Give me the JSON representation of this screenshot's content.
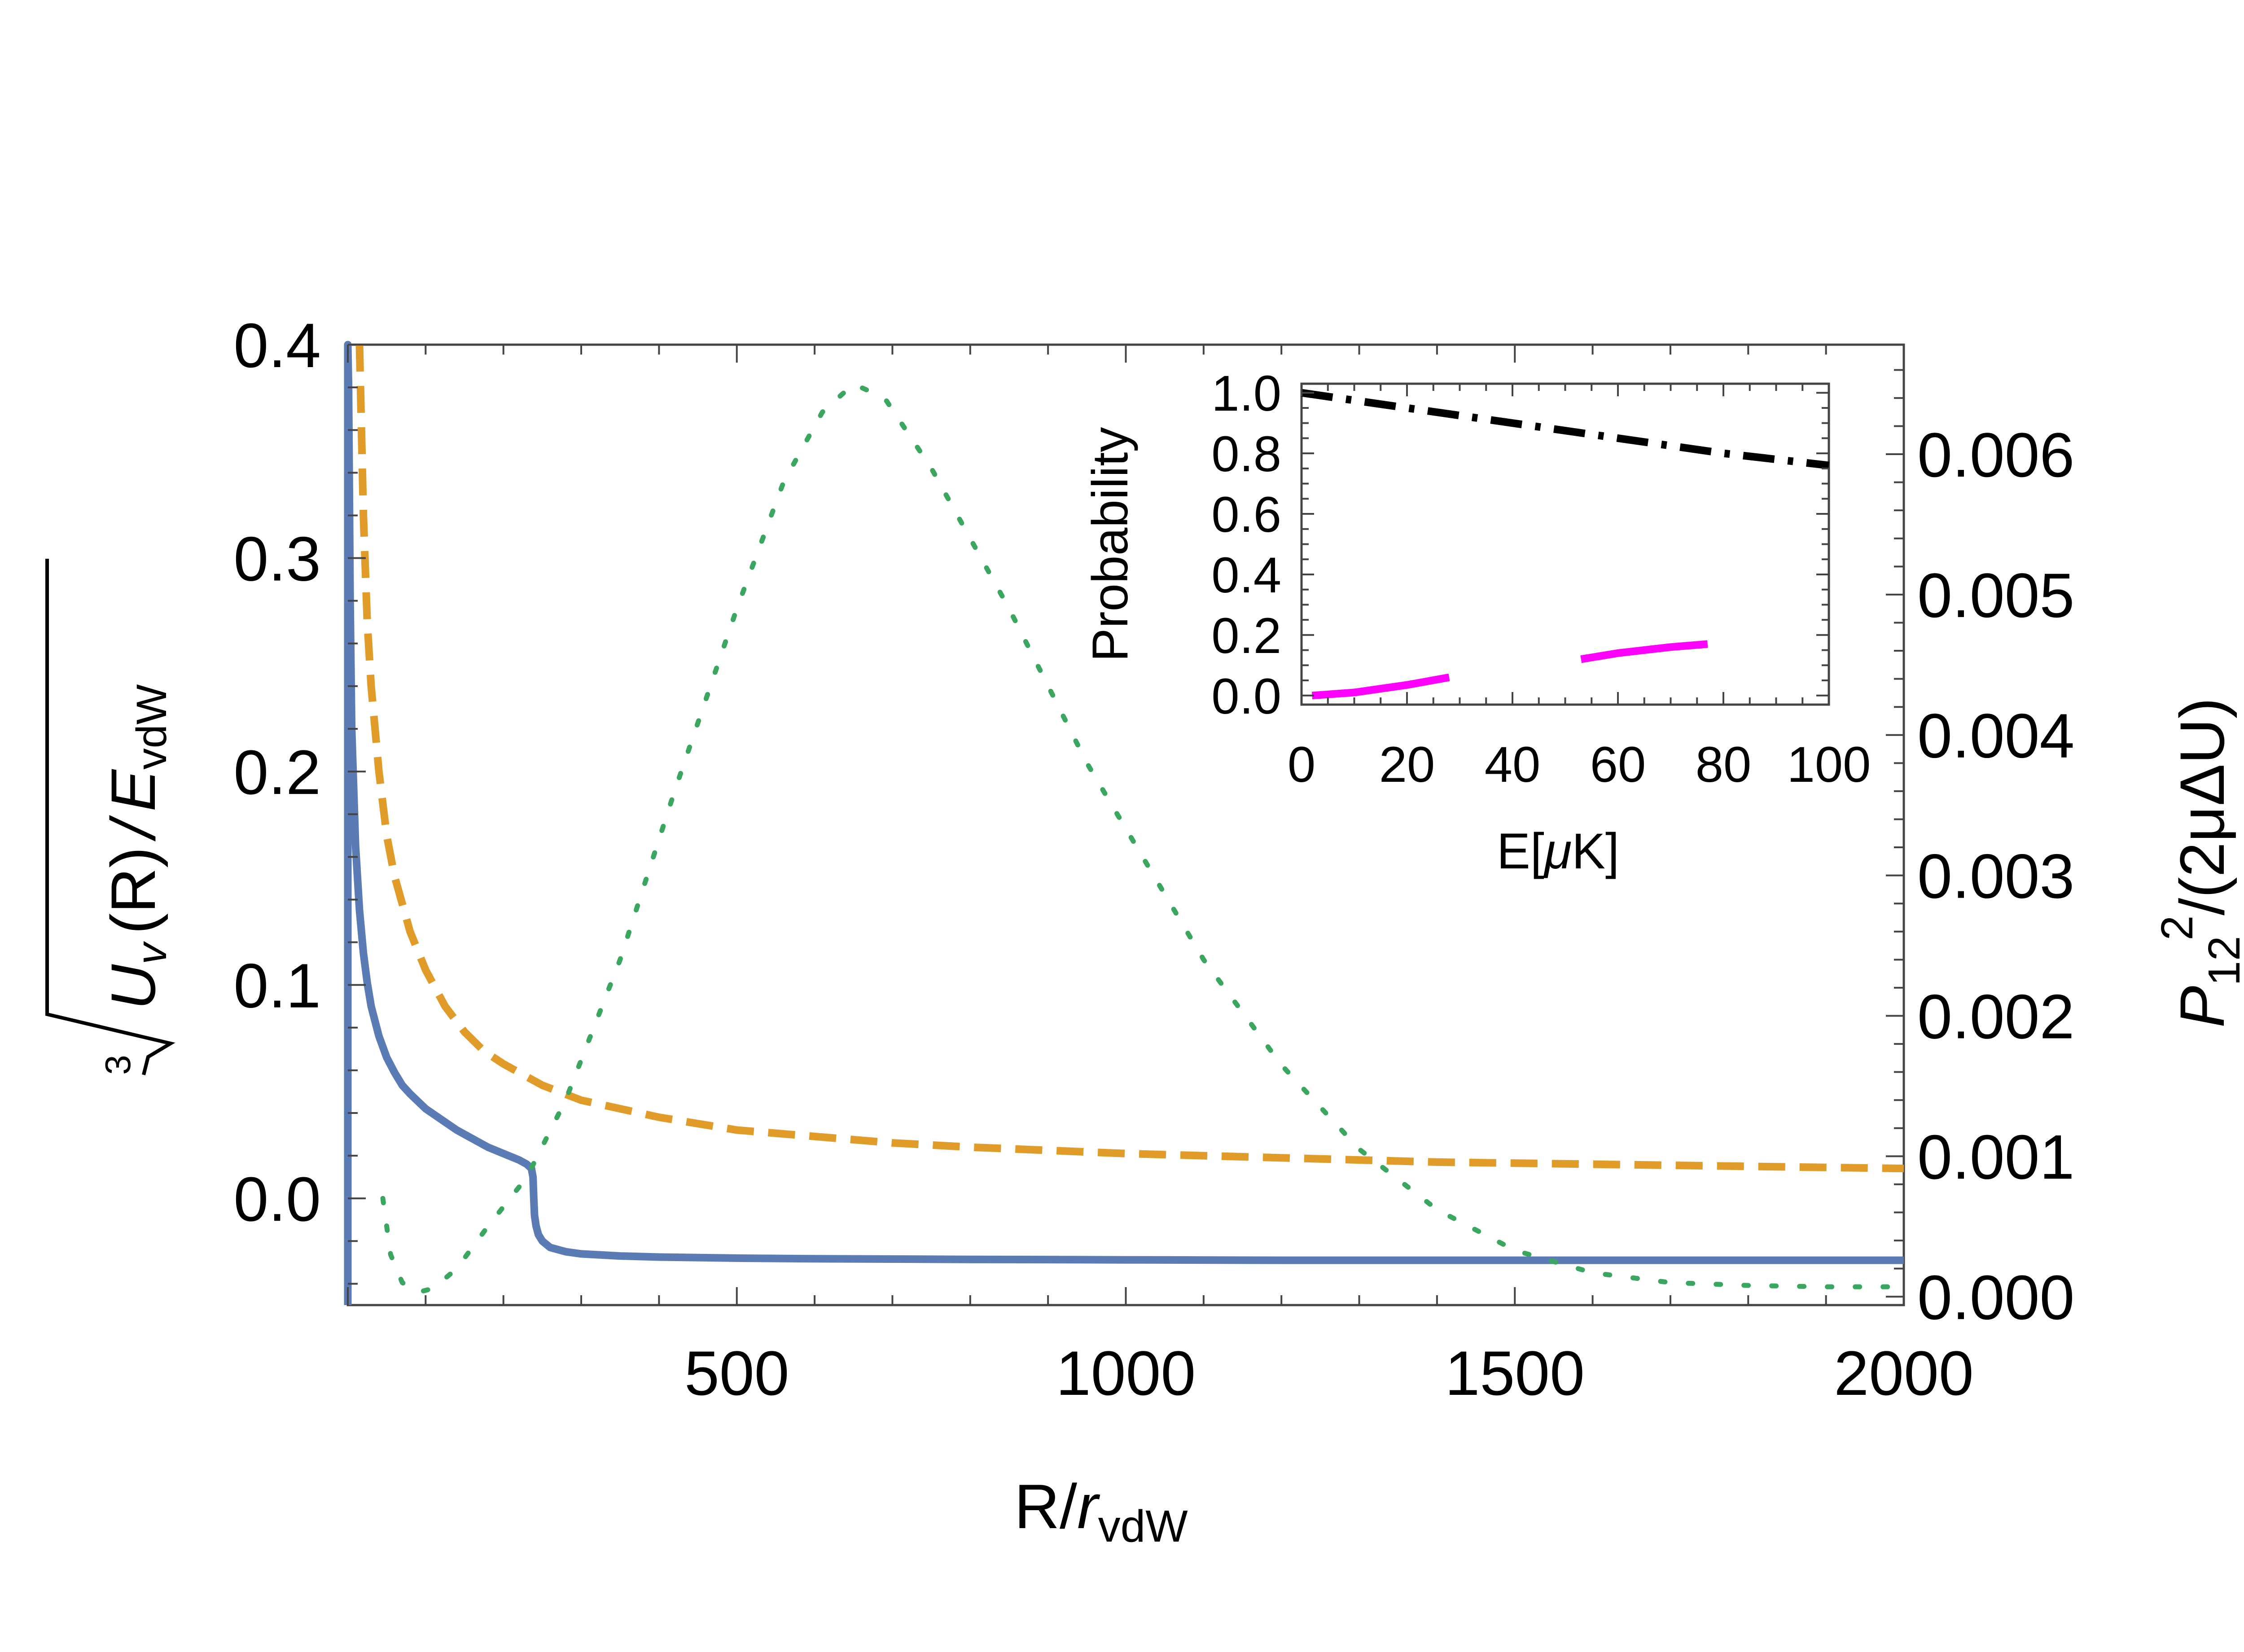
{
  "chart_data": {
    "main": {
      "type": "line",
      "title": "",
      "xlabel": {
        "base": "R/",
        "italic": "r",
        "sub": "vdW"
      },
      "ylabel_left": {
        "root_index": "3",
        "expr": "U",
        "expr_sub": "v",
        "expr_mid": "(R)",
        "slash": "/",
        "denom": "E",
        "denom_sub": "vdW"
      },
      "ylabel_right": {
        "base": "P",
        "sub": "12",
        "sup": "2",
        "rest": "/(2μΔU)"
      },
      "xlim": [
        0,
        2000
      ],
      "ylim_left": [
        -0.05,
        0.4
      ],
      "ylim_right": [
        -6e-05,
        0.00678
      ],
      "x_tick_labels": [
        "500",
        "1000",
        "1500",
        "2000"
      ],
      "y_left_tick_labels": [
        "0.0",
        "0.1",
        "0.2",
        "0.3",
        "0.4"
      ],
      "y_right_tick_labels": [
        "0.000",
        "0.001",
        "0.002",
        "0.003",
        "0.004",
        "0.005",
        "0.006"
      ],
      "series": [
        {
          "name": "cbrt U_v(R)/E_vdW (solid)",
          "axis": "left",
          "color": "#5b7bb4",
          "style": "solid",
          "x": [
            0,
            0,
            1,
            2,
            3,
            5,
            10,
            15,
            20,
            25,
            30,
            40,
            50,
            60,
            70,
            80,
            100,
            120,
            140,
            160,
            180,
            200,
            220,
            230,
            236,
            238,
            239,
            240,
            242,
            245,
            250,
            260,
            280,
            300,
            350,
            400,
            500,
            600,
            800,
            1000,
            1200,
            1500,
            2000
          ],
          "y": [
            -0.05,
            0.4,
            0.38,
            0.33,
            0.28,
            0.22,
            0.165,
            0.135,
            0.115,
            0.101,
            0.09,
            0.076,
            0.066,
            0.059,
            0.053,
            0.049,
            0.042,
            0.037,
            0.032,
            0.028,
            0.024,
            0.021,
            0.018,
            0.016,
            0.014,
            0.01,
            0.0,
            -0.008,
            -0.013,
            -0.017,
            -0.02,
            -0.023,
            -0.025,
            -0.026,
            -0.027,
            -0.0275,
            -0.028,
            -0.0283,
            -0.0286,
            -0.0288,
            -0.029,
            -0.029,
            -0.029
          ]
        },
        {
          "name": "dashed curve",
          "axis": "left",
          "color": "#e19b28",
          "style": "dashed",
          "x": [
            15,
            20,
            25,
            30,
            40,
            50,
            60,
            80,
            100,
            125,
            150,
            175,
            200,
            250,
            300,
            400,
            500,
            600,
            700,
            800,
            1000,
            1200,
            1400,
            1600,
            1800,
            2000
          ],
          "y": [
            0.4,
            0.32,
            0.27,
            0.24,
            0.2,
            0.17,
            0.151,
            0.125,
            0.107,
            0.09,
            0.078,
            0.069,
            0.063,
            0.053,
            0.046,
            0.038,
            0.032,
            0.029,
            0.026,
            0.024,
            0.021,
            0.019,
            0.017,
            0.016,
            0.015,
            0.014
          ]
        },
        {
          "name": "P12^2/(2μΔU) (dotted)",
          "axis": "right",
          "color": "#3aa65f",
          "style": "dotted",
          "x": [
            45,
            55,
            70,
            90,
            110,
            140,
            180,
            230,
            280,
            350,
            420,
            500,
            560,
            610,
            650,
            690,
            750,
            850,
            950,
            1100,
            1200,
            1300,
            1400,
            1500,
            1600,
            1700,
            1800,
            1900,
            2000
          ],
          "y": [
            0.0007,
            0.0003,
            0.0001,
            3e-05,
            6e-05,
            0.0002,
            0.0005,
            0.00085,
            0.0014,
            0.0024,
            0.0036,
            0.0049,
            0.0058,
            0.0063,
            0.0065,
            0.0064,
            0.0059,
            0.0049,
            0.0038,
            0.0024,
            0.00165,
            0.00105,
            0.00062,
            0.00033,
            0.00017,
            0.0001,
            8e-05,
            7e-05,
            7e-05
          ]
        }
      ]
    },
    "inset": {
      "type": "line",
      "xlabel": {
        "base": "E[",
        "mu": "μ",
        "end": "K]"
      },
      "ylabel": "Probability",
      "xlim": [
        0,
        100
      ],
      "ylim": [
        -0.03,
        1.03
      ],
      "x_tick_labels": [
        "0",
        "20",
        "40",
        "60",
        "80",
        "100"
      ],
      "y_tick_labels": [
        "0.0",
        "0.2",
        "0.4",
        "0.6",
        "0.8",
        "1.0"
      ],
      "series": [
        {
          "name": "upper (dash-dot)",
          "color": "#000000",
          "style": "dashdot",
          "x": [
            0,
            20,
            40,
            60,
            80,
            100
          ],
          "y": [
            1.0,
            0.95,
            0.9,
            0.85,
            0.8,
            0.76
          ]
        },
        {
          "name": "lower segment 1",
          "color": "#ff00ff",
          "style": "solid",
          "x": [
            2,
            10,
            20,
            28
          ],
          "y": [
            0.0,
            0.01,
            0.035,
            0.06
          ]
        },
        {
          "name": "lower segment 2",
          "color": "#ff00ff",
          "style": "solid",
          "x": [
            53,
            60,
            70,
            77
          ],
          "y": [
            0.12,
            0.14,
            0.16,
            0.17
          ]
        }
      ]
    }
  }
}
